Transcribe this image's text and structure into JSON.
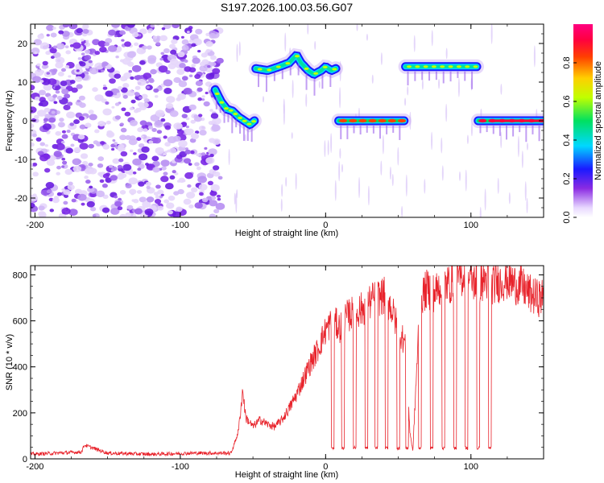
{
  "title": "S197.2026.100.03.56.G07",
  "chart_data": [
    {
      "type": "heatmap",
      "xlabel": "Height of straight line (km)",
      "ylabel": "Frequency (Hz)",
      "xlim": [
        -203,
        150
      ],
      "ylim": [
        -25,
        25
      ],
      "xticks": [
        -200,
        -100,
        0,
        100
      ],
      "yticks": [
        -20,
        -10,
        0,
        10,
        20
      ],
      "colorbar": {
        "label": "Normalized spectral amplitude",
        "range": [
          0,
          1
        ],
        "ticks": [
          "0.0",
          "0.2",
          "0.4",
          "0.6",
          "0.8"
        ],
        "tick_values": [
          0.0,
          0.2,
          0.4,
          0.6,
          0.8
        ]
      },
      "noise_region": {
        "x": [
          -203,
          -72
        ],
        "y": [
          -25,
          25
        ],
        "amplitude": 0.15
      },
      "tracks": [
        {
          "x": [
            -76,
            -72,
            -68,
            -64,
            -60,
            -56,
            -52,
            -49
          ],
          "freq": [
            8,
            5,
            3,
            2.5,
            1,
            0,
            -1,
            0
          ],
          "amplitude": 0.4
        },
        {
          "x": [
            -48,
            -40,
            -32,
            -25,
            -20,
            -17,
            -12,
            -8,
            -3,
            0,
            4,
            7
          ],
          "freq": [
            13.5,
            13,
            14,
            15,
            17,
            15,
            13,
            12,
            13,
            14,
            13,
            13.5
          ],
          "amplitude": 0.45
        },
        {
          "x": [
            9,
            54
          ],
          "freq": [
            0,
            0
          ],
          "amplitude": 0.95
        },
        {
          "x": [
            55,
            104
          ],
          "freq": [
            14,
            14
          ],
          "amplitude": 0.5
        },
        {
          "x": [
            105,
            150
          ],
          "freq": [
            0,
            0
          ],
          "amplitude": 1.0
        }
      ]
    },
    {
      "type": "line",
      "xlabel": "Height of straight line (km)",
      "ylabel": "SNR (10 * v/v)",
      "xlim": [
        -203,
        150
      ],
      "ylim": [
        0,
        840
      ],
      "xticks": [
        -200,
        -100,
        0,
        100
      ],
      "yticks": [
        0,
        200,
        400,
        600,
        800
      ],
      "color": "#e8232b",
      "series": [
        {
          "name": "SNR",
          "x": [
            -203,
            -185,
            -168,
            -166,
            -150,
            -120,
            -90,
            -65,
            -60,
            -57,
            -55,
            -50,
            -45,
            -40,
            -35,
            -30,
            -25,
            -20,
            -15,
            -10,
            -5,
            0,
            5,
            10,
            15,
            20,
            25,
            30,
            35,
            40,
            45,
            50,
            55,
            58,
            60,
            62,
            65,
            70,
            75,
            80,
            85,
            90,
            95,
            100,
            105,
            110,
            115,
            120,
            125,
            130,
            135,
            140,
            145,
            150
          ],
          "y": [
            20,
            25,
            30,
            60,
            25,
            20,
            25,
            25,
            120,
            300,
            180,
            140,
            170,
            150,
            140,
            170,
            220,
            280,
            350,
            420,
            480,
            560,
            600,
            570,
            620,
            640,
            650,
            680,
            700,
            710,
            660,
            560,
            500,
            120,
            30,
            300,
            700,
            740,
            720,
            760,
            760,
            780,
            800,
            780,
            760,
            780,
            760,
            770,
            780,
            760,
            750,
            720,
            700,
            700
          ]
        }
      ],
      "dropouts": {
        "x": [
          5,
          12,
          20,
          28,
          35,
          42,
          50,
          56,
          65,
          73,
          81,
          89,
          97,
          105,
          113
        ],
        "value": 40
      }
    }
  ]
}
